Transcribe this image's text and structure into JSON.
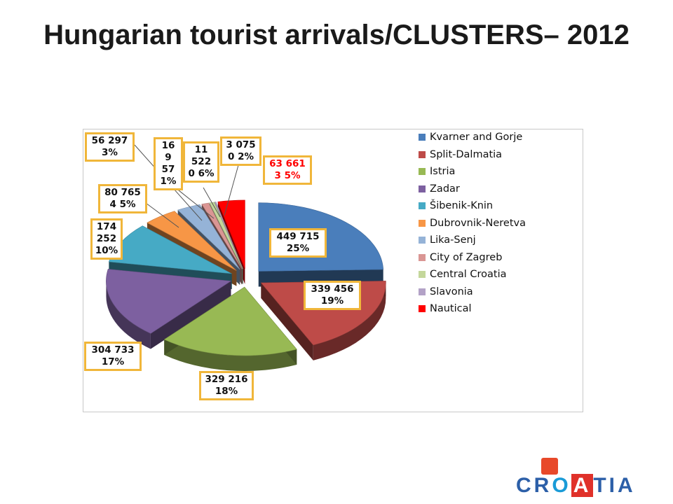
{
  "title": "Hungarian tourist arrivals/CLUSTERS– 2012",
  "chart_data": {
    "type": "pie",
    "title": "Hungarian tourist arrivals/CLUSTERS– 2012",
    "legend_position": "right",
    "slices": [
      {
        "name": "Kvarner and Gorje",
        "value": 449715,
        "value_label": "449 715",
        "pct_label": "25%",
        "color": "#4a7ebb"
      },
      {
        "name": "Split-Dalmatia",
        "value": 339456,
        "value_label": "339 456",
        "pct_label": "19%",
        "color": "#be4b48"
      },
      {
        "name": "Istria",
        "value": 329216,
        "value_label": "329 216",
        "pct_label": "18%",
        "color": "#98b954"
      },
      {
        "name": "Zadar",
        "value": 304733,
        "value_label": "304 733",
        "pct_label": "17%",
        "color": "#7d60a0"
      },
      {
        "name": "Šibenik-Knin",
        "value": 174252,
        "value_label": "174 252",
        "pct_label": "10%",
        "color": "#46aac5"
      },
      {
        "name": "Dubrovnik-Neretva",
        "value": 80765,
        "value_label": "80 765",
        "pct_label": "4 5%",
        "color": "#f79646"
      },
      {
        "name": "Lika-Senj",
        "value": 56297,
        "value_label": "56 297",
        "pct_label": "3%",
        "color": "#95b3d7"
      },
      {
        "name": "City of Zagreb",
        "value": 16957,
        "value_label": "16 957",
        "pct_label": "1%",
        "color": "#da9694"
      },
      {
        "name": "Central Croatia",
        "value": 11522,
        "value_label": "11 522",
        "pct_label": "0 6%",
        "color": "#c4d79b"
      },
      {
        "name": "Slavonia",
        "value": 3075,
        "value_label": "3 075",
        "pct_label": "0 2%",
        "color": "#b3a2c7"
      },
      {
        "name": "Nautical",
        "value": 63661,
        "value_label": "63 661",
        "pct_label": "3 5%",
        "color": "#ff0000"
      }
    ]
  },
  "labels": {
    "kvarner": "449 715\n25%",
    "split": "339 456\n19%",
    "istria": "329 216\n18%",
    "zadar": "304 733\n17%",
    "sibenik": "174\n252\n10%",
    "dubrovnik": "80 765\n4 5%",
    "lika": "56 297\n3%",
    "zagreb": "16\n9 57\n1%",
    "central": "11\n522\n0 6%",
    "slavonia": "3 075\n0 2%",
    "nautical": "63 661\n3 5%"
  },
  "brand": {
    "text_pre": "CR",
    "text_o": "O",
    "text_a": "A",
    "text_post": "TIA"
  }
}
